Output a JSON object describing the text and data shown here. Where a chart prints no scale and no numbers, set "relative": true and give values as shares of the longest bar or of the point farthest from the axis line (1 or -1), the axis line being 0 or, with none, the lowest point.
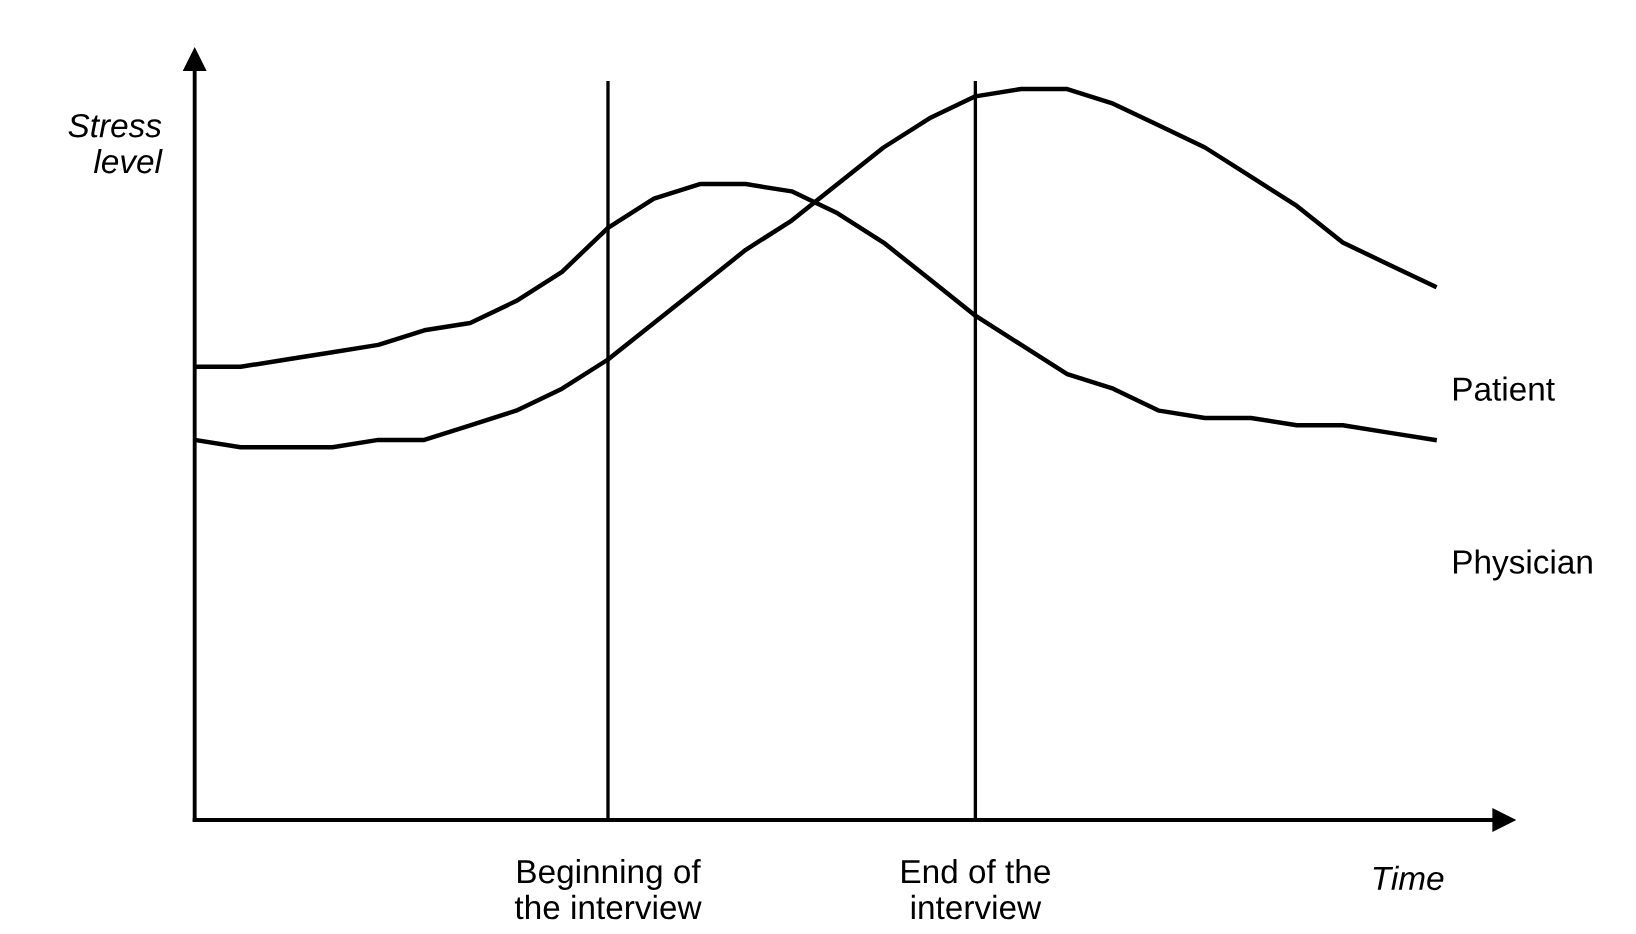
{
  "chart_data": {
    "type": "line",
    "relative": true,
    "xlabel": "Time",
    "ylabel": "Stress\nlevel",
    "legend": false,
    "grid": false,
    "marker": "none",
    "line_style": "solid",
    "categories": [
      null,
      null,
      null,
      null,
      null,
      null,
      null,
      null,
      null,
      "Beginning of\nthe interview",
      null,
      null,
      null,
      null,
      null,
      null,
      null,
      "End of the\ninterview",
      null,
      null,
      null,
      null,
      null,
      null,
      null,
      null,
      null,
      null
    ],
    "ref_lines": [
      {
        "axis": "x",
        "value": "Beginning of\nthe interview",
        "color": "#000000"
      },
      {
        "axis": "x",
        "value": "End of the\ninterview",
        "color": "#000000"
      }
    ],
    "series": [
      {
        "name": "Patient",
        "color": "#000000",
        "values": [
          0.52,
          0.51,
          0.51,
          0.51,
          0.52,
          0.52,
          0.54,
          0.56,
          0.59,
          0.63,
          0.68,
          0.73,
          0.78,
          0.82,
          0.87,
          0.92,
          0.96,
          0.99,
          1.0,
          1.0,
          0.98,
          0.95,
          0.92,
          0.88,
          0.84,
          0.79,
          0.76,
          0.73
        ]
      },
      {
        "name": "Physician",
        "color": "#000000",
        "values": [
          0.62,
          0.62,
          0.63,
          0.64,
          0.65,
          0.67,
          0.68,
          0.71,
          0.75,
          0.81,
          0.85,
          0.87,
          0.87,
          0.86,
          0.83,
          0.79,
          0.74,
          0.69,
          0.65,
          0.61,
          0.59,
          0.56,
          0.55,
          0.55,
          0.54,
          0.54,
          0.53,
          0.52
        ]
      }
    ]
  }
}
